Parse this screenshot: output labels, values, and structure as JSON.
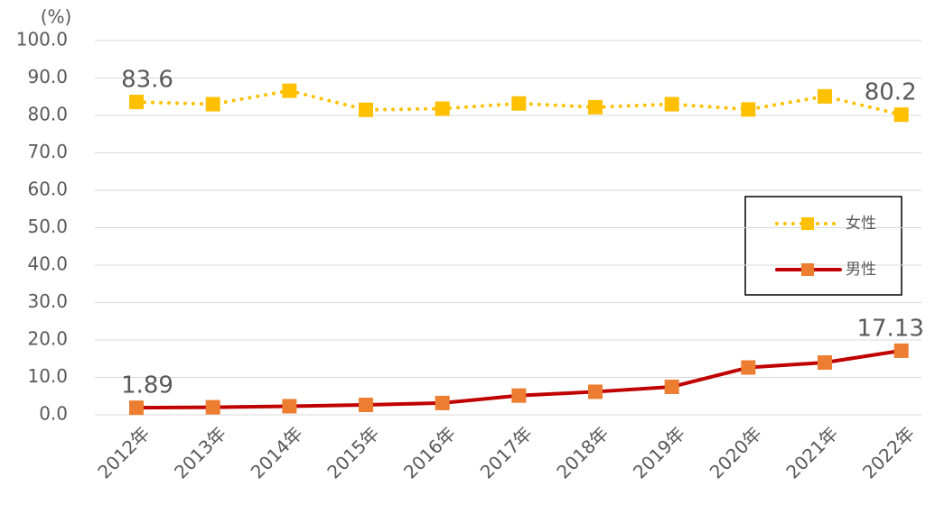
{
  "chart_data": {
    "type": "line",
    "y_label": "(%)",
    "categories": [
      "2012年",
      "2013年",
      "2014年",
      "2015年",
      "2016年",
      "2017年",
      "2018年",
      "2019年",
      "2020年",
      "2021年",
      "2022年"
    ],
    "series": [
      {
        "name": "女性",
        "color": "#ffc000",
        "marker_color": "#ffc000",
        "line_style": "dotted",
        "values": [
          83.6,
          83.0,
          86.6,
          81.5,
          81.8,
          83.2,
          82.2,
          83.0,
          81.6,
          85.1,
          80.2
        ],
        "value_labels": [
          "83.6",
          null,
          null,
          null,
          null,
          null,
          null,
          null,
          null,
          null,
          "80.2"
        ]
      },
      {
        "name": "男性",
        "color": "#c00000",
        "marker_color": "#ed7d31",
        "line_style": "solid",
        "values": [
          1.89,
          2.03,
          2.3,
          2.65,
          3.16,
          5.14,
          6.16,
          7.48,
          12.65,
          13.97,
          17.13
        ],
        "value_labels": [
          "1.89",
          null,
          null,
          null,
          null,
          null,
          null,
          null,
          null,
          null,
          "17.13"
        ]
      }
    ],
    "ylim": [
      0,
      100
    ],
    "yticks": [
      {
        "value": 0,
        "label": "0.0"
      },
      {
        "value": 10,
        "label": "10.0"
      },
      {
        "value": 20,
        "label": "20.0"
      },
      {
        "value": 30,
        "label": "30.0"
      },
      {
        "value": 40,
        "label": "40.0"
      },
      {
        "value": 50,
        "label": "50.0"
      },
      {
        "value": 60,
        "label": "60.0"
      },
      {
        "value": 70,
        "label": "70.0"
      },
      {
        "value": 80,
        "label": "80.0"
      },
      {
        "value": 90,
        "label": "90.0"
      },
      {
        "value": 100,
        "label": "100.0"
      }
    ],
    "grid": true,
    "legend": "right"
  }
}
